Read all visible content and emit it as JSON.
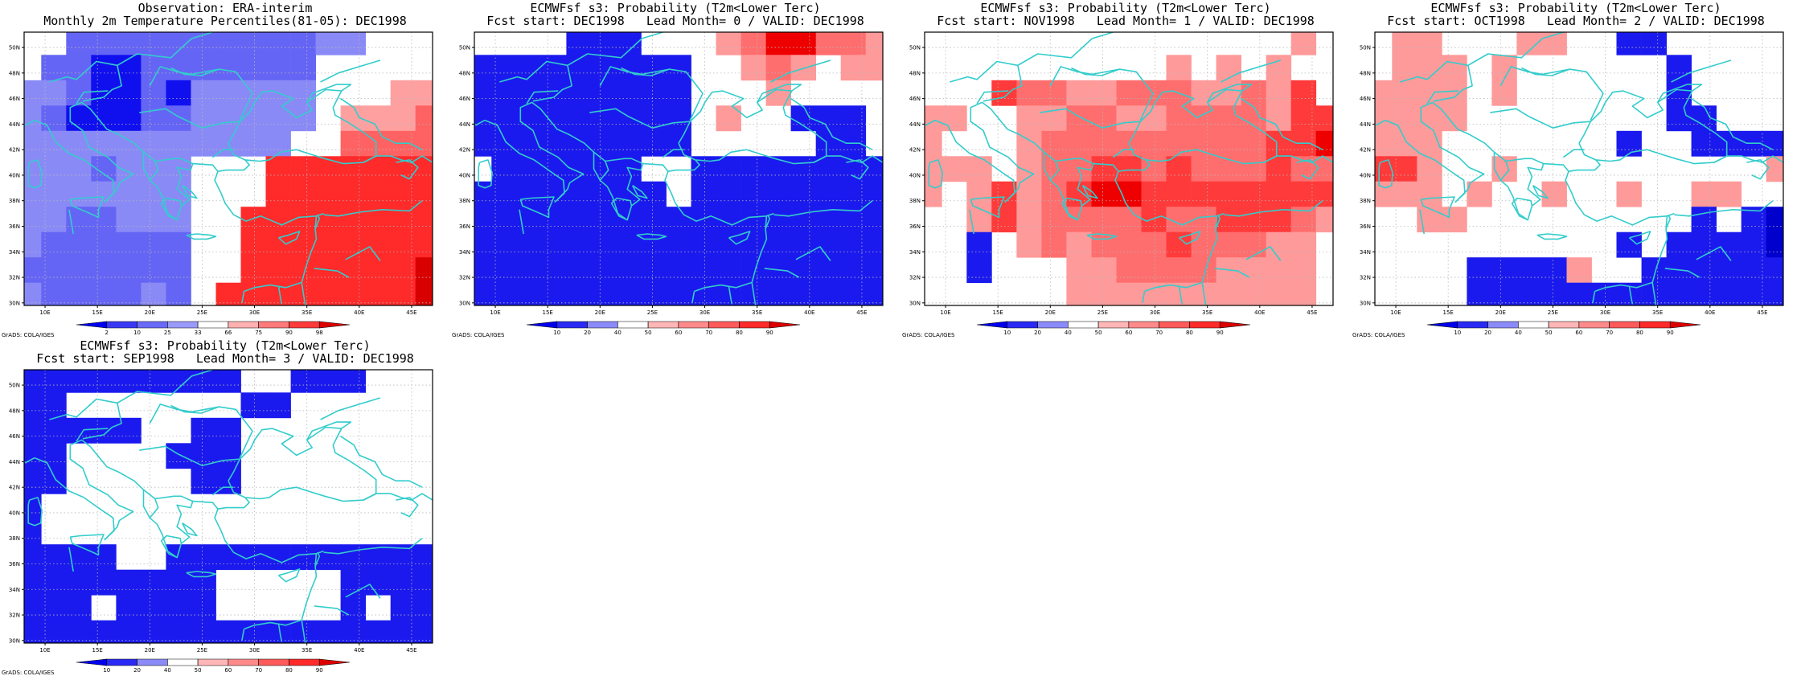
{
  "colors": {
    "coast": "#33cccc",
    "grid": "#b8b8b8",
    "blue_levels": [
      "#0000ee",
      "#2a2af5",
      "#4d4dfa",
      "#7777fa",
      "#9a9af8",
      "#bdbdfb"
    ],
    "red_levels": [
      "#ffb0b0",
      "#ff8c8c",
      "#ff5c5c",
      "#ff3030",
      "#ee0000",
      "#c80000"
    ]
  },
  "axes": {
    "lon_labels": [
      "10E",
      "15E",
      "20E",
      "25E",
      "30E",
      "35E",
      "40E",
      "45E"
    ],
    "lat_labels": [
      "30N",
      "32N",
      "34N",
      "36N",
      "38N",
      "40N",
      "42N",
      "44N",
      "46N",
      "48N",
      "50N"
    ],
    "lon_range": [
      8,
      47
    ],
    "lat_range": [
      29.8,
      51.2
    ]
  },
  "grads_label": "GrADS: COLA/IGES",
  "panels": [
    {
      "id": "obs",
      "title1": "Observation: ERA-interim",
      "title2": "Monthly 2m Temperature Percentiles(81-05): DEC1998",
      "colorbar": [
        "2",
        "10",
        "25",
        "33",
        "66",
        "75",
        "90",
        "98"
      ],
      "chart_data": {
        "type": "heatmap",
        "grid_origin": {
          "lon": 8,
          "lat": 30
        },
        "cell_size_deg": {
          "lon": 2.5,
          "lat": 2.5
        },
        "colorbar_categories": [
          "<2",
          "2-10",
          "10-25",
          "25-33",
          "33-66",
          "66-75",
          "75-90",
          "90-98",
          ">98"
        ],
        "rows": [
          "EEbbbbbbbbbbccEEE",
          "EbbaabbbbbbbEEEEE",
          "ccbaabacccccEEEvv",
          "cbaaabbcccccEvvvy",
          "cccccccccccEEyyyy",
          "cccbcccEEEzzzzzzz",
          "cccccccEEEzzzzzzz",
          "ccbbcccEEzzzzzzzz",
          "cbbbbbbEEzzzzzzzz",
          "bbbbbbbEEzzzzzzz9",
          "cbbbbcbEzzzzzzzz9"
        ]
      }
    },
    {
      "id": "lead0",
      "title1": "ECMWFsf s3: Probability (T2m<Lower Terc)",
      "title2": "Fcst start: DEC1998   Lead Month= 0 / VALID: DEC1998",
      "colorbar": [
        "10",
        "20",
        "40",
        "50",
        "60",
        "70",
        "80",
        "90"
      ]
    },
    {
      "id": "lead1",
      "title1": "ECMWFsf s3: Probability (T2m<Lower Terc)",
      "title2": "Fcst start: NOV1998   Lead Month= 1 / VALID: DEC1998",
      "colorbar": [
        "10",
        "20",
        "40",
        "50",
        "60",
        "70",
        "80",
        "90"
      ]
    },
    {
      "id": "lead2",
      "title1": "ECMWFsf s3: Probability (T2m<Lower Terc)",
      "title2": "Fcst start: OCT1998   Lead Month= 2 / VALID: DEC1998",
      "colorbar": [
        "10",
        "20",
        "40",
        "50",
        "60",
        "70",
        "80",
        "90"
      ]
    },
    {
      "id": "lead3",
      "title1": "ECMWFsf s3: Probability (T2m<Lower Terc)",
      "title2": "Fcst start: SEP1998   Lead Month= 3 / VALID: DEC1998",
      "colorbar": [
        "10",
        "20",
        "40",
        "50",
        "60",
        "70",
        "80",
        "90"
      ]
    }
  ],
  "forecast_grids": {
    "note": "rows from north (top) to south; cols from west; codes: a,b,c=blue 1..3, .=white, r,s,t,u=red 1..4",
    "lead0": [
      "....aaa...rsuussr",
      "aaaaaaaaa..rsr.rr",
      "aaaaaaaaa...r....",
      "aaaaaaaaa.r..aaa.",
      "aaaaaaaaa.....aa.",
      ".aaaaaa..aaaaaaaa",
      "aaaaaaaa.aaaaaaaa",
      "aaaaaaaaaaaaaaaaa",
      "aaaaaaaaaaaaaaaaa",
      "aaaaaaaaaaaaaaaaa",
      "aaaaaaaaaaaaaaaaa"
    ],
    "lead1": [
      "...............r.",
      "..........r.r.r..",
      "...tssrrsssrrsrt.",
      "rr..rrssrrssssrtt",
      "r...rsssssssssttu",
      "rrr.rssttstssstss",
      "r.rtrstuutttttttt",
      "..rtrsssstsstttsr",
      "..a.rsrssstsssrr.",
      "..a...rrssssrrrr.",
      "......rrrrrrrrrr."
    ],
    "lead2": [
      ".rr...rr..aa.....",
      ".rrr.r......a....",
      "rrrr.r......a....",
      "rrrr........aa...",
      "rrr.......a..aaaa",
      "ttr..r..........r",
      "rrr.r..r..r..rr..",
      "..rr.........a.ab",
      "..........a.aaaab",
      "....aaaar..aaaaaa",
      "....aaaaaaaaaaaaa"
    ],
    "lead3": [
      "aaaaaaaaa..aaa...",
      "aa.......aa......",
      "aaaaa..aa........",
      "aa....aaa........",
      "aa.....aa........",
      "a................",
      "a................",
      "aaaa..aaaaaaaaaaa",
      "aaaaaaaa.....aaaa",
      "aaa.aaaa.....a.aa",
      "aaaaaaaaaaaaaaaaa"
    ]
  },
  "coastline_lonlat": [
    [
      [
        9.0,
        44.3
      ],
      [
        10.2,
        43.9
      ],
      [
        11.0,
        42.6
      ],
      [
        12.3,
        41.7
      ],
      [
        13.7,
        41.2
      ],
      [
        15.6,
        40.1
      ],
      [
        16.5,
        39.6
      ],
      [
        16.6,
        38.6
      ],
      [
        15.7,
        37.9
      ],
      [
        16.9,
        38.9
      ],
      [
        17.1,
        39.4
      ],
      [
        18.4,
        40.1
      ],
      [
        17.0,
        40.6
      ],
      [
        16.0,
        41.4
      ],
      [
        14.2,
        42.2
      ],
      [
        13.6,
        43.5
      ],
      [
        12.4,
        44.2
      ],
      [
        12.4,
        45.3
      ],
      [
        13.5,
        45.7
      ],
      [
        14.3,
        45.2
      ],
      [
        15.0,
        44.5
      ],
      [
        15.9,
        43.6
      ],
      [
        17.0,
        43.2
      ],
      [
        18.5,
        42.5
      ],
      [
        19.4,
        41.8
      ],
      [
        19.4,
        40.5
      ],
      [
        20.0,
        39.6
      ],
      [
        20.7,
        39.1
      ],
      [
        21.2,
        38.3
      ],
      [
        21.7,
        37.0
      ],
      [
        22.6,
        36.5
      ],
      [
        23.0,
        37.6
      ],
      [
        23.8,
        38.1
      ],
      [
        22.6,
        38.9
      ],
      [
        23.0,
        39.9
      ],
      [
        22.6,
        40.6
      ],
      [
        23.9,
        40.4
      ],
      [
        24.1,
        40.9
      ],
      [
        26.0,
        40.8
      ],
      [
        26.5,
        40.3
      ],
      [
        26.2,
        39.6
      ],
      [
        26.8,
        38.6
      ],
      [
        27.2,
        37.8
      ],
      [
        28.0,
        36.9
      ],
      [
        29.2,
        36.4
      ],
      [
        30.6,
        36.8
      ],
      [
        32.6,
        36.1
      ],
      [
        34.2,
        36.7
      ],
      [
        35.9,
        36.8
      ],
      [
        35.8,
        35.8
      ],
      [
        35.9,
        35.0
      ],
      [
        35.4,
        34.0
      ],
      [
        34.9,
        32.8
      ],
      [
        34.5,
        31.6
      ],
      [
        33.0,
        31.2
      ],
      [
        31.5,
        31.4
      ],
      [
        30.0,
        31.2
      ],
      [
        29.0,
        30.9
      ]
    ],
    [
      [
        27.5,
        42.5
      ],
      [
        28.0,
        41.6
      ],
      [
        29.1,
        41.2
      ],
      [
        30.5,
        41.1
      ],
      [
        31.4,
        41.2
      ],
      [
        32.5,
        41.8
      ],
      [
        34.0,
        42.0
      ],
      [
        35.5,
        41.6
      ],
      [
        36.7,
        41.3
      ],
      [
        38.5,
        40.9
      ],
      [
        40.4,
        41.0
      ],
      [
        41.6,
        41.5
      ],
      [
        41.6,
        42.6
      ],
      [
        40.5,
        43.3
      ],
      [
        39.0,
        44.1
      ],
      [
        37.7,
        44.7
      ],
      [
        37.5,
        45.3
      ],
      [
        38.3,
        46.6
      ],
      [
        36.8,
        46.7
      ],
      [
        35.0,
        45.7
      ],
      [
        35.5,
        45.1
      ],
      [
        34.0,
        44.5
      ],
      [
        33.4,
        44.9
      ],
      [
        32.6,
        45.4
      ],
      [
        33.7,
        46.0
      ],
      [
        31.7,
        46.6
      ],
      [
        30.7,
        46.5
      ],
      [
        30.0,
        45.7
      ],
      [
        29.6,
        45.0
      ],
      [
        28.6,
        44.2
      ],
      [
        28.0,
        43.2
      ],
      [
        27.5,
        42.5
      ]
    ],
    [
      [
        38.3,
        46.6
      ],
      [
        39.2,
        47.1
      ],
      [
        37.8,
        47.1
      ],
      [
        35.5,
        46.4
      ],
      [
        35.0,
        45.7
      ]
    ],
    [
      [
        8.1,
        43.9
      ],
      [
        9.0,
        44.3
      ]
    ],
    [
      [
        8.5,
        41.0
      ],
      [
        9.3,
        41.2
      ],
      [
        9.7,
        40.2
      ],
      [
        9.6,
        39.2
      ],
      [
        9.0,
        39.0
      ],
      [
        8.4,
        39.2
      ],
      [
        8.4,
        40.6
      ],
      [
        8.5,
        41.0
      ]
    ],
    [
      [
        12.4,
        38.1
      ],
      [
        13.4,
        38.2
      ],
      [
        15.6,
        38.3
      ],
      [
        15.1,
        37.3
      ],
      [
        15.1,
        36.7
      ],
      [
        14.3,
        37.0
      ],
      [
        12.6,
        37.6
      ],
      [
        12.4,
        38.1
      ]
    ],
    [
      [
        23.5,
        35.3
      ],
      [
        24.5,
        35.4
      ],
      [
        25.8,
        35.3
      ],
      [
        26.3,
        35.2
      ],
      [
        25.5,
        35.0
      ],
      [
        24.2,
        35.0
      ],
      [
        23.5,
        35.3
      ]
    ],
    [
      [
        32.3,
        35.1
      ],
      [
        33.2,
        35.3
      ],
      [
        34.3,
        35.6
      ],
      [
        34.0,
        35.0
      ],
      [
        33.0,
        34.6
      ],
      [
        32.3,
        35.1
      ]
    ],
    [
      [
        22.6,
        36.5
      ],
      [
        21.8,
        36.8
      ],
      [
        21.1,
        37.8
      ],
      [
        21.6,
        38.2
      ],
      [
        22.9,
        38.0
      ],
      [
        23.0,
        37.6
      ]
    ],
    [
      [
        23.1,
        39.2
      ],
      [
        24.0,
        38.7
      ],
      [
        24.5,
        38.2
      ],
      [
        23.6,
        38.4
      ],
      [
        23.1,
        39.2
      ]
    ],
    [
      [
        35.8,
        35.8
      ],
      [
        36.2,
        36.6
      ],
      [
        36.0,
        36.9
      ]
    ],
    [
      [
        40.4,
        41.0
      ],
      [
        41.6,
        41.5
      ],
      [
        42.0,
        41.5
      ],
      [
        43.0,
        41.5
      ],
      [
        44.0,
        41.2
      ],
      [
        45.0,
        41.0
      ],
      [
        46.0,
        41.5
      ],
      [
        47.0,
        41.0
      ]
    ],
    [
      [
        26.5,
        40.3
      ],
      [
        27.3,
        40.4
      ],
      [
        29.0,
        40.4
      ],
      [
        29.5,
        40.8
      ],
      [
        29.1,
        41.2
      ]
    ],
    [
      [
        28.8,
        30.0
      ],
      [
        29.0,
        30.9
      ]
    ],
    [
      [
        32.3,
        31.3
      ],
      [
        32.5,
        30.3
      ],
      [
        32.6,
        29.9
      ]
    ],
    [
      [
        34.9,
        29.5
      ],
      [
        34.5,
        31.6
      ]
    ],
    [
      [
        20.0,
        47.0
      ],
      [
        21.0,
        48.5
      ],
      [
        22.6,
        48.1
      ],
      [
        24.0,
        47.9
      ],
      [
        26.6,
        48.3
      ],
      [
        28.2,
        48.1
      ],
      [
        29.8,
        46.4
      ],
      [
        28.6,
        44.3
      ]
    ],
    [
      [
        16.9,
        48.6
      ],
      [
        17.3,
        47.0
      ],
      [
        16.4,
        46.7
      ],
      [
        15.6,
        46.1
      ],
      [
        13.6,
        45.8
      ]
    ],
    [
      [
        10.4,
        47.3
      ],
      [
        12.1,
        47.7
      ],
      [
        13.0,
        47.5
      ],
      [
        14.9,
        48.9
      ],
      [
        16.9,
        48.6
      ],
      [
        18.8,
        49.5
      ],
      [
        22.0,
        49.2
      ],
      [
        24.0,
        50.7
      ],
      [
        26.0,
        51.2
      ]
    ],
    [
      [
        19.4,
        41.8
      ],
      [
        20.5,
        41.1
      ],
      [
        20.8,
        40.4
      ],
      [
        20.0,
        39.6
      ]
    ],
    [
      [
        20.5,
        41.1
      ],
      [
        22.3,
        41.3
      ],
      [
        23.0,
        41.3
      ],
      [
        24.1,
        40.9
      ]
    ],
    [
      [
        22.7,
        44.6
      ],
      [
        25.0,
        43.7
      ],
      [
        27.0,
        44.1
      ],
      [
        28.6,
        44.2
      ]
    ],
    [
      [
        19.0,
        44.9
      ],
      [
        21.5,
        45.2
      ],
      [
        22.7,
        44.6
      ]
    ],
    [
      [
        22.0,
        48.4
      ],
      [
        23.3,
        47.9
      ],
      [
        24.9,
        47.8
      ],
      [
        26.6,
        48.3
      ]
    ],
    [
      [
        26.0,
        41.4
      ],
      [
        27.0,
        42.0
      ],
      [
        28.0,
        42.0
      ]
    ],
    [
      [
        12.3,
        37.3
      ],
      [
        12.7,
        35.4
      ]
    ],
    [
      [
        36.6,
        36.9
      ],
      [
        38.0,
        36.8
      ],
      [
        40.0,
        37.1
      ],
      [
        42.2,
        37.3
      ],
      [
        44.8,
        37.2
      ],
      [
        46.0,
        38.0
      ]
    ],
    [
      [
        38.7,
        33.4
      ],
      [
        41.0,
        34.4
      ],
      [
        42.0,
        33.3
      ]
    ],
    [
      [
        35.7,
        32.7
      ],
      [
        37.9,
        32.5
      ],
      [
        39.0,
        32.0
      ]
    ],
    [
      [
        35.9,
        36.8
      ],
      [
        36.6,
        37.0
      ]
    ],
    [
      [
        43.5,
        41.0
      ],
      [
        44.8,
        41.2
      ],
      [
        45.6,
        40.6
      ],
      [
        44.8,
        39.7
      ],
      [
        44.0,
        40.0
      ]
    ],
    [
      [
        38.2,
        46.0
      ],
      [
        39.5,
        45.3
      ],
      [
        40.0,
        44.5
      ],
      [
        41.5,
        44.0
      ],
      [
        42.2,
        43.0
      ],
      [
        43.5,
        42.5
      ],
      [
        44.8,
        42.5
      ],
      [
        46.0,
        42.0
      ]
    ],
    [
      [
        36.3,
        47.3
      ],
      [
        38.0,
        48.0
      ],
      [
        40.0,
        48.5
      ],
      [
        42.0,
        49.0
      ]
    ],
    [
      [
        13.0,
        45.6
      ],
      [
        13.7,
        46.5
      ],
      [
        16.0,
        46.6
      ]
    ]
  ]
}
